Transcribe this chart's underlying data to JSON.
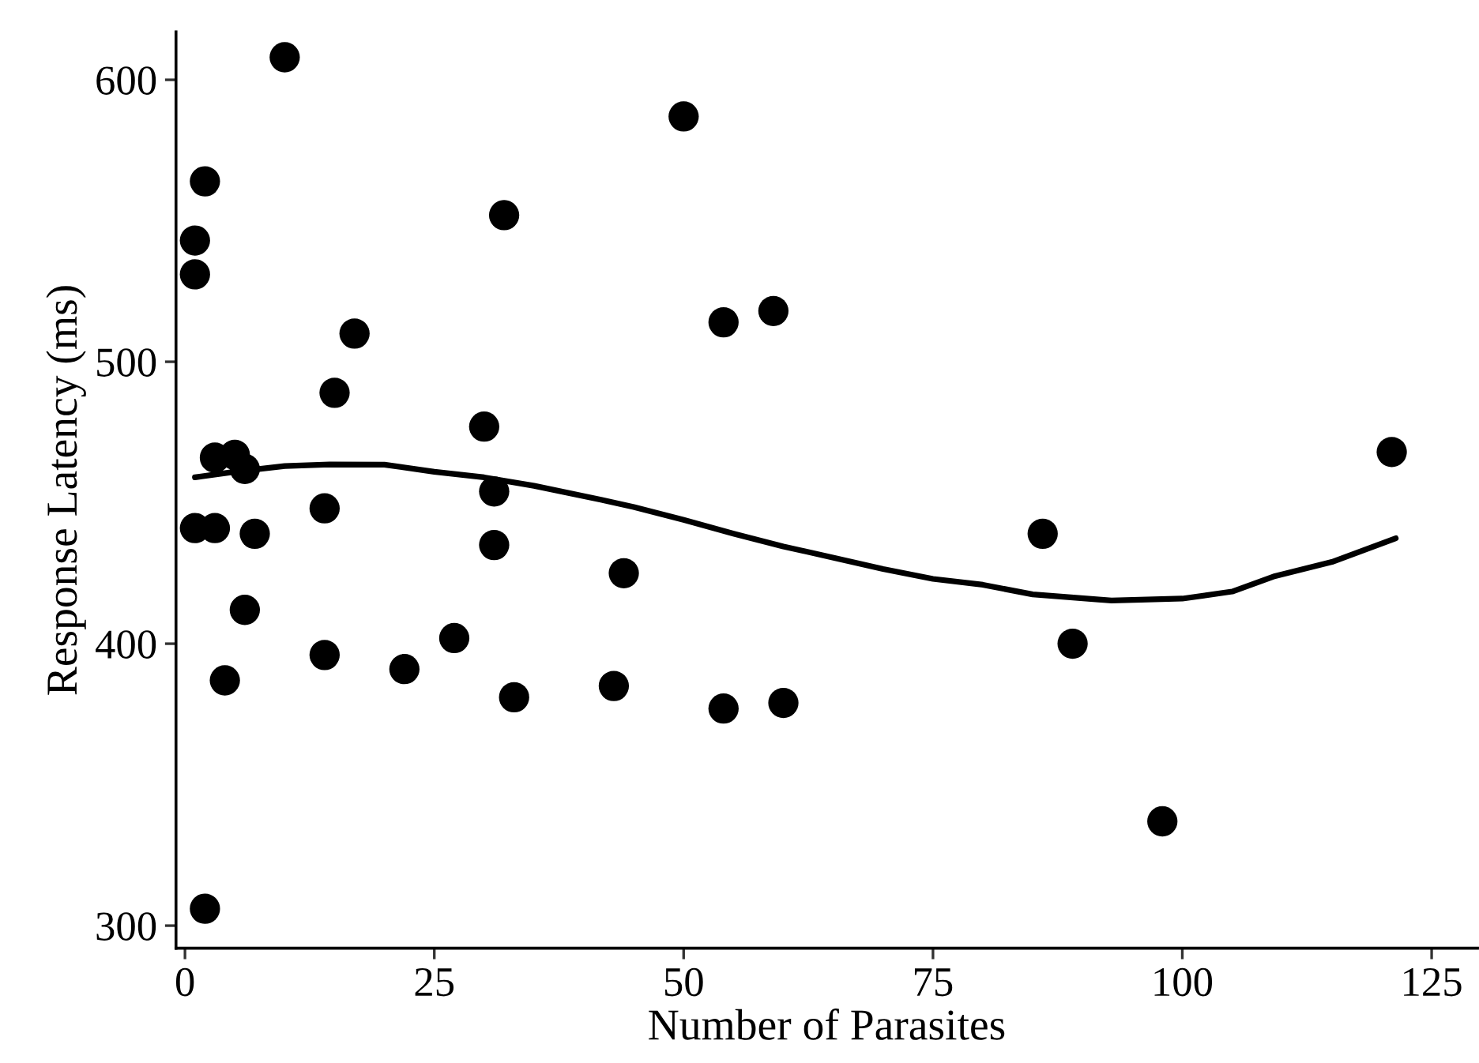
{
  "chart_data": {
    "type": "scatter",
    "xlabel": "Number of Parasites",
    "ylabel": "Response Latency (ms)",
    "xlim": [
      -0.9,
      129.6
    ],
    "ylim": [
      292,
      617
    ],
    "xticks": [
      0,
      25,
      50,
      75,
      100,
      125
    ],
    "yticks": [
      300,
      400,
      500,
      600
    ],
    "grid": false,
    "legend": false,
    "marker": "circle",
    "series": [
      {
        "color": "#000000",
        "x": [
          10,
          2,
          1,
          1,
          32,
          17,
          15,
          30,
          3,
          5,
          6,
          31,
          1,
          3,
          7,
          14,
          31,
          44,
          6,
          27,
          14,
          22,
          4,
          43,
          33,
          2,
          50,
          54,
          59,
          121,
          86,
          89,
          54,
          60,
          98
        ],
        "values": [
          608,
          564,
          543,
          531,
          552,
          510,
          489,
          477,
          466,
          467,
          462,
          454,
          441,
          441,
          439,
          448,
          435,
          425,
          412,
          402,
          396,
          391,
          387,
          385,
          381,
          306,
          587,
          514,
          518,
          468,
          439,
          400,
          377,
          379,
          337
        ]
      },
      {
        "type": "line",
        "color": "#000000",
        "line_style": "solid",
        "marker": "none",
        "x": [
          1,
          5,
          10,
          14.5,
          20,
          25,
          30,
          35,
          41.8,
          45,
          50,
          55,
          60,
          65.3,
          70,
          75,
          80,
          85,
          92.9,
          100,
          105,
          109.3,
          115,
          121.4
        ],
        "values": [
          459,
          461,
          463,
          463.6,
          463.5,
          461,
          459,
          456,
          451,
          448.5,
          443.9,
          439,
          434.5,
          430.3,
          426.5,
          423,
          420.9,
          417.5,
          415.3,
          416,
          418.5,
          424,
          429,
          437.4
        ]
      }
    ]
  }
}
